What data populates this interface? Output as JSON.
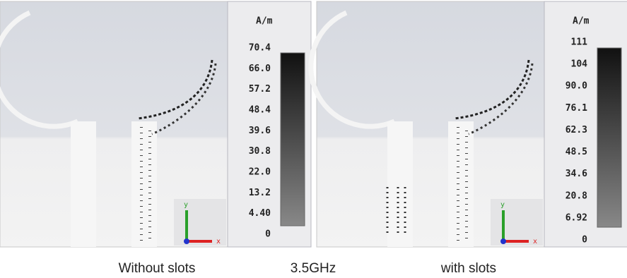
{
  "panels": [
    {
      "unit": "A/m",
      "scale_labels": [
        "70.4",
        "66.0",
        "57.2",
        "48.4",
        "39.6",
        "30.8",
        "22.0",
        "13.2",
        "4.40",
        "0"
      ],
      "axis_y": "y",
      "axis_x": "x",
      "caption": "Without slots"
    },
    {
      "unit": "A/m",
      "scale_labels": [
        "111",
        "104",
        "90.0",
        "76.1",
        "62.3",
        "48.5",
        "34.6",
        "20.8",
        "6.92",
        "0"
      ],
      "axis_y": "y",
      "axis_x": "x",
      "caption": "with slots"
    }
  ],
  "center_caption": "3.5GHz"
}
